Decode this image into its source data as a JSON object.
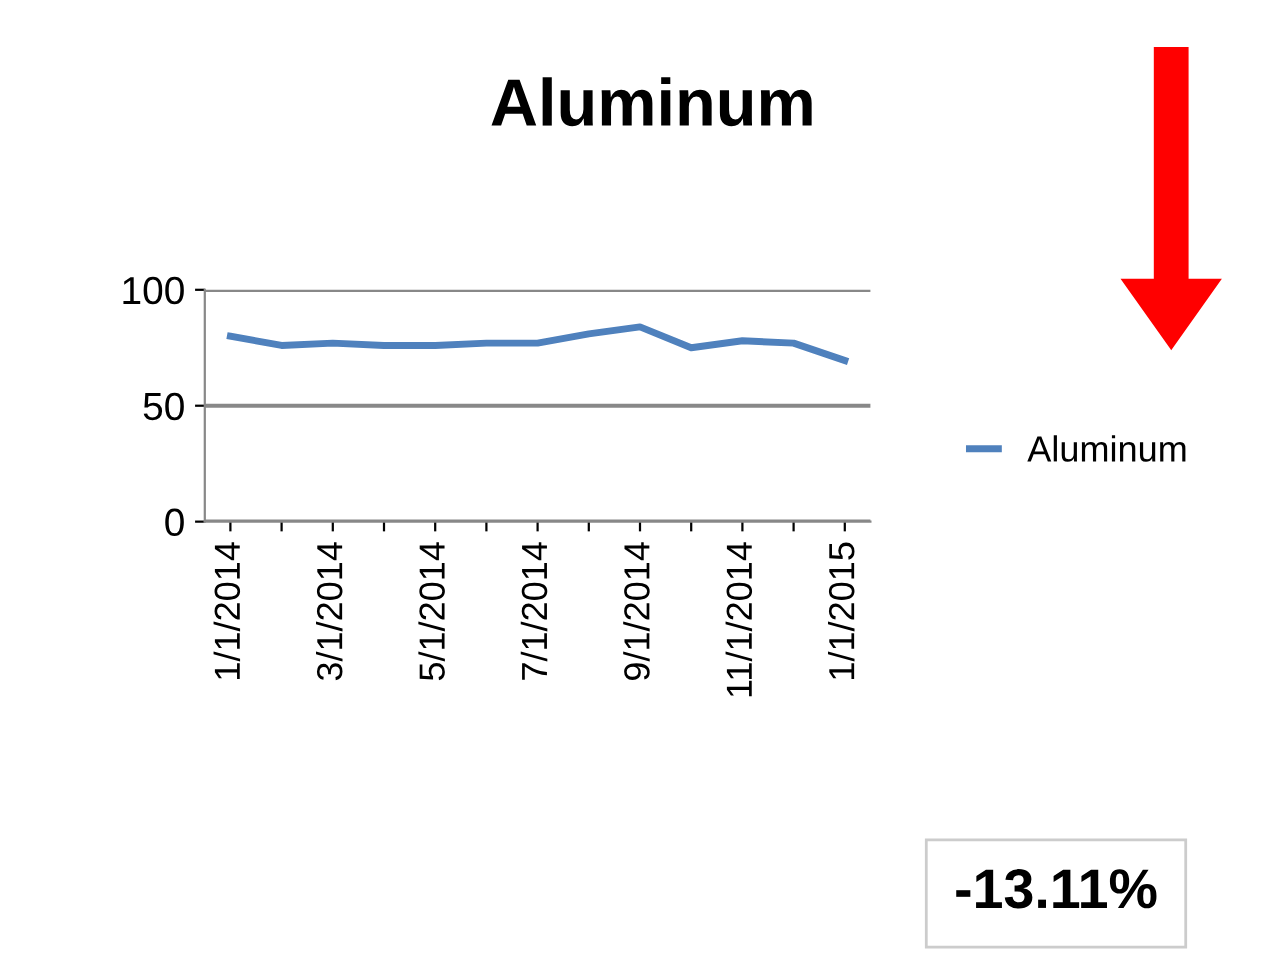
{
  "chart_data": {
    "type": "line",
    "title": "Aluminum",
    "categories": [
      "1/1/2014",
      null,
      "3/1/2014",
      null,
      "5/1/2014",
      null,
      "7/1/2014",
      null,
      "9/1/2014",
      null,
      "11/1/2014",
      null,
      "1/1/2015"
    ],
    "series": [
      {
        "name": "Aluminum",
        "color": "#4f81bd",
        "values": [
          80,
          76,
          77,
          76,
          76,
          77,
          77,
          81,
          84,
          75,
          78,
          77,
          69.5
        ]
      }
    ],
    "ylim": [
      0,
      100
    ],
    "yticks": [
      0,
      50,
      100
    ],
    "grid": "y",
    "legend": "right",
    "marker": "none",
    "annotations": [
      "-13.11%"
    ]
  }
}
